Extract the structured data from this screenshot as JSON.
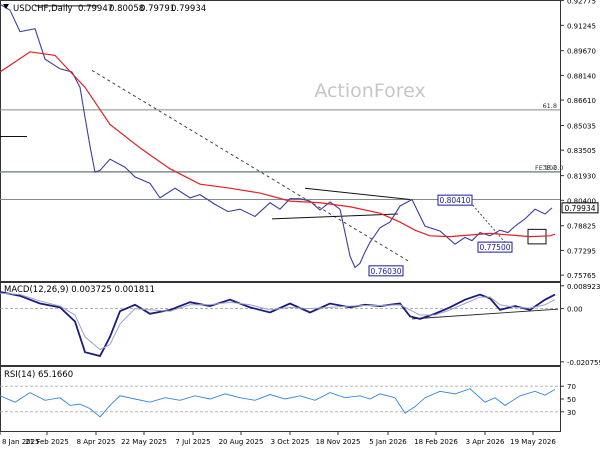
{
  "chart_data": [
    {
      "panel": "price",
      "type": "line",
      "title": "USDCHF,Daily",
      "ohlc_readout": [
        "0.79947",
        "0.80058",
        "0.79791",
        "0.79934"
      ],
      "watermark": "ActionForex",
      "ylim": [
        0.754,
        0.9275
      ],
      "y_ticks": [
        "0.92775",
        "0.91245",
        "0.89670",
        "0.88140",
        "0.86610",
        "0.85035",
        "0.83505",
        "0.81930",
        "0.80400",
        "0.78825",
        "0.77295",
        "0.75765"
      ],
      "last_price": "0.79934",
      "series": [
        {
          "name": "close",
          "color": "#3a3f9e",
          "x": [
            0,
            10,
            20,
            35,
            45,
            60,
            72,
            80,
            85,
            90,
            95,
            100,
            110,
            125,
            135,
            150,
            160,
            175,
            190,
            200,
            215,
            228,
            240,
            255,
            270,
            280,
            290,
            300,
            310,
            320,
            330,
            340,
            350,
            355,
            360,
            365,
            370,
            380,
            390,
            400,
            412,
            425,
            440,
            455,
            465,
            472,
            480,
            490,
            500,
            508,
            515,
            525,
            535,
            545,
            552
          ],
          "values": [
            0.9255,
            0.9218,
            0.9085,
            0.9103,
            0.8915,
            0.8855,
            0.8835,
            0.874,
            0.8555,
            0.8375,
            0.8215,
            0.8225,
            0.8295,
            0.8245,
            0.8185,
            0.8145,
            0.8055,
            0.8115,
            0.8055,
            0.8075,
            0.8015,
            0.797,
            0.7985,
            0.794,
            0.8025,
            0.7985,
            0.805,
            0.805,
            0.8035,
            0.798,
            0.803,
            0.7985,
            0.7695,
            0.7624,
            0.765,
            0.772,
            0.778,
            0.787,
            0.7905,
            0.8005,
            0.8045,
            0.788,
            0.785,
            0.7768,
            0.781,
            0.779,
            0.784,
            0.782,
            0.7855,
            0.784,
            0.788,
            0.7925,
            0.7985,
            0.7955,
            0.7993
          ]
        },
        {
          "name": "ma",
          "color": "#e21f26",
          "x": [
            0,
            30,
            55,
            85,
            110,
            140,
            170,
            200,
            230,
            260,
            290,
            320,
            350,
            380,
            400,
            415,
            430,
            450,
            470,
            490,
            510,
            530,
            550,
            555
          ],
          "values": [
            0.8835,
            0.896,
            0.8938,
            0.874,
            0.851,
            0.8365,
            0.8235,
            0.814,
            0.8115,
            0.8085,
            0.8035,
            0.8025,
            0.8,
            0.796,
            0.7905,
            0.7855,
            0.782,
            0.7815,
            0.7825,
            0.7835,
            0.7825,
            0.7815,
            0.782,
            0.783
          ]
        }
      ],
      "hlines": [
        {
          "value": 0.86,
          "label": "61.8",
          "color": "#7f8c8c"
        },
        {
          "value": 0.8215,
          "label": "FE 100.0",
          "color": "#7f8c8c"
        },
        {
          "value": 0.8218,
          "label": "38.2",
          "color": "#7f8c8c"
        },
        {
          "value": 0.8045,
          "label": "",
          "color": "#7f8c8c"
        }
      ],
      "callouts": [
        "0.80410",
        "0.77500",
        "0.76030"
      ],
      "callout_values": [
        0.8041,
        0.775,
        0.7603
      ]
    },
    {
      "panel": "macd",
      "type": "line",
      "title": "MACD(12,26,9) 0.003725 0.001811",
      "ylim": [
        -0.022,
        0.01
      ],
      "y_ticks": [
        "0.008923",
        "0.00",
        "-0.020759"
      ],
      "series": [
        {
          "name": "macd",
          "color": "#1a1a80",
          "x": [
            0,
            20,
            40,
            60,
            75,
            85,
            100,
            110,
            120,
            135,
            150,
            170,
            190,
            210,
            230,
            250,
            270,
            290,
            310,
            330,
            350,
            365,
            380,
            400,
            410,
            420,
            435,
            450,
            465,
            480,
            490,
            500,
            515,
            530,
            545,
            555
          ],
          "values": [
            0.0065,
            0.005,
            0.002,
            0.0005,
            -0.005,
            -0.017,
            -0.0185,
            -0.011,
            -0.001,
            0.0015,
            -0.002,
            -0.0005,
            0.0025,
            0.001,
            0.0035,
            0.0005,
            -0.0015,
            0.002,
            -0.0015,
            0.002,
            0.0005,
            0.0015,
            0.001,
            0.002,
            -0.003,
            -0.004,
            -0.002,
            0.0005,
            0.0035,
            0.0055,
            0.004,
            -0.0005,
            0.001,
            -0.0005,
            0.0035,
            0.0055
          ]
        },
        {
          "name": "signal",
          "color": "#9aa3c7",
          "x": [
            0,
            20,
            40,
            60,
            75,
            85,
            100,
            110,
            120,
            135,
            150,
            170,
            190,
            210,
            230,
            250,
            270,
            290,
            310,
            330,
            350,
            365,
            380,
            400,
            410,
            420,
            435,
            450,
            465,
            480,
            490,
            500,
            515,
            530,
            545,
            555
          ],
          "values": [
            0.006,
            0.0055,
            0.003,
            0.001,
            -0.0025,
            -0.011,
            -0.016,
            -0.014,
            -0.006,
            0.0,
            -0.0005,
            -0.001,
            0.0015,
            0.0015,
            0.0025,
            0.0015,
            -0.0005,
            0.0005,
            0.0,
            0.0005,
            0.001,
            0.0012,
            0.0012,
            0.0015,
            -0.0005,
            -0.0025,
            -0.0025,
            -0.0005,
            0.002,
            0.0045,
            0.0045,
            0.0015,
            0.0005,
            0.0002,
            0.0015,
            0.0035
          ]
        }
      ]
    },
    {
      "panel": "rsi",
      "type": "line",
      "title": "RSI(14) 65.1660",
      "ylim": [
        0,
        100
      ],
      "y_ticks": [
        "70",
        "50",
        "30"
      ],
      "y_tick_values": [
        70,
        50,
        30
      ],
      "series": [
        {
          "name": "rsi",
          "color": "#2e86de",
          "x": [
            0,
            15,
            30,
            45,
            60,
            70,
            80,
            90,
            100,
            110,
            120,
            135,
            150,
            165,
            180,
            195,
            210,
            225,
            240,
            255,
            270,
            285,
            300,
            315,
            330,
            345,
            360,
            370,
            380,
            395,
            405,
            415,
            425,
            440,
            455,
            470,
            485,
            495,
            505,
            520,
            535,
            545,
            555
          ],
          "values": [
            55,
            45,
            60,
            48,
            52,
            40,
            42,
            35,
            22,
            40,
            55,
            50,
            45,
            52,
            48,
            55,
            50,
            58,
            52,
            48,
            57,
            50,
            55,
            48,
            60,
            52,
            55,
            50,
            58,
            52,
            28,
            38,
            52,
            62,
            58,
            66,
            45,
            52,
            40,
            55,
            62,
            56,
            65
          ]
        }
      ]
    }
  ],
  "x_axis": {
    "labels": [
      "8 Jan 2025",
      "21 Feb 2025",
      "8 Apr 2025",
      "22 May 2025",
      "7 Jul 2025",
      "20 Aug 2025",
      "3 Oct 2025",
      "18 Nov 2025",
      "5 Jan 2026",
      "18 Feb 2026",
      "3 Apr 2026",
      "19 May 2026"
    ],
    "label_x": [
      0,
      47,
      96,
      144,
      193,
      241,
      290,
      338,
      388,
      436,
      485,
      533
    ]
  }
}
